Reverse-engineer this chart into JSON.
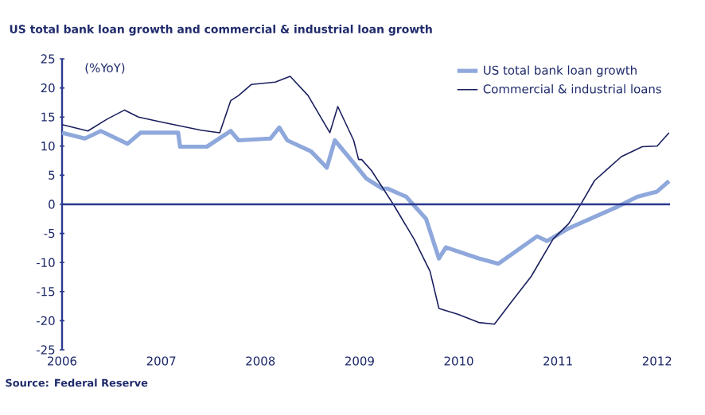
{
  "chart_data": {
    "type": "line",
    "title": "US total bank loan growth and commercial & industrial loan growth",
    "ylabel": "(%YoY)",
    "annotations": [
      "Source: Federal Reserve"
    ],
    "xlim": [
      2006,
      2012.13
    ],
    "xticks": [
      2006,
      2007,
      2008,
      2009,
      2010,
      2011,
      2012
    ],
    "ylim": [
      -25,
      25
    ],
    "yticks": [
      -25,
      -20,
      -15,
      -10,
      -5,
      0,
      5,
      10,
      15,
      20,
      25
    ],
    "ref_lines": [
      {
        "axis": "y",
        "value": 0,
        "color": "#2b3990"
      }
    ],
    "legend": "top right",
    "grid": false,
    "marker": "none",
    "line_style": "solid",
    "series": [
      {
        "name": "US total bank loan growth",
        "color": "#8fa8dc",
        "x": [
          2006.0,
          2006.23,
          2006.39,
          2006.66,
          2006.79,
          2007.17,
          2007.19,
          2007.46,
          2007.7,
          2007.78,
          2008.1,
          2008.19,
          2008.27,
          2008.51,
          2008.67,
          2008.75,
          2008.94,
          2009.07,
          2009.23,
          2009.28,
          2009.47,
          2009.67,
          2009.8,
          2009.87,
          2010.2,
          2010.4,
          2010.79,
          2010.89,
          2011.11,
          2011.59,
          2011.8,
          2012.0,
          2012.12
        ],
        "values": [
          12.3,
          11.3,
          12.6,
          10.4,
          12.3,
          12.3,
          9.9,
          9.9,
          12.6,
          11,
          11.3,
          13.2,
          11,
          9.1,
          6.3,
          11,
          7.1,
          4.4,
          2.7,
          2.7,
          1.3,
          -2.5,
          -9.3,
          -7.4,
          -9.3,
          -10.2,
          -5.5,
          -6.3,
          -4.1,
          -0.5,
          1.3,
          2.2,
          4
        ]
      },
      {
        "name": "Commercial & industrial loans",
        "color": "#1a1f5e",
        "x": [
          2006.0,
          2006.26,
          2006.45,
          2006.63,
          2006.77,
          2007.01,
          2007.41,
          2007.59,
          2007.7,
          2007.78,
          2007.91,
          2008.15,
          2008.3,
          2008.48,
          2008.7,
          2008.78,
          2008.94,
          2008.99,
          2009.02,
          2009.12,
          2009.34,
          2009.55,
          2009.71,
          2009.8,
          2009.99,
          2010.2,
          2010.36,
          2010.52,
          2010.73,
          2010.95,
          2011.11,
          2011.24,
          2011.37,
          2011.64,
          2011.85,
          2012.0,
          2012.12
        ],
        "values": [
          13.7,
          12.6,
          14.6,
          16.2,
          15,
          14.1,
          12.7,
          12.3,
          17.8,
          18.7,
          20.6,
          21,
          22,
          18.7,
          12.3,
          16.8,
          11,
          7.7,
          7.7,
          5.8,
          0,
          -6,
          -11.5,
          -17.9,
          -18.9,
          -20.3,
          -20.6,
          -17,
          -12.4,
          -6,
          -3.3,
          0.3,
          4.1,
          8.2,
          9.9,
          10,
          12.3
        ]
      }
    ]
  }
}
